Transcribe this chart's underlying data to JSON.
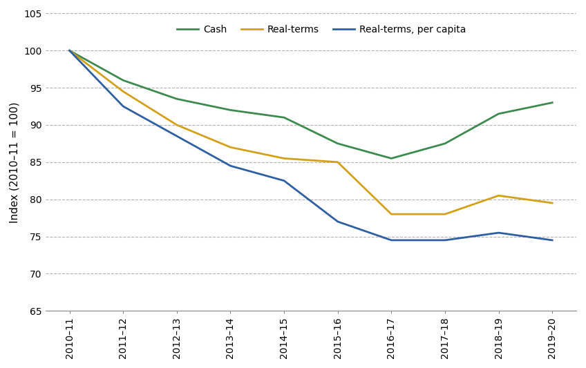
{
  "x_labels": [
    "2010–11",
    "2011–12",
    "2012–13",
    "2013–14",
    "2014–15",
    "2015–16",
    "2016–17",
    "2017–18",
    "2018–19",
    "2019–20"
  ],
  "cash": [
    100,
    96.0,
    93.5,
    92.0,
    91.0,
    87.5,
    85.5,
    87.5,
    91.5,
    93.0
  ],
  "real_terms": [
    100,
    94.5,
    90.0,
    87.0,
    85.5,
    85.0,
    78.0,
    78.0,
    80.5,
    79.5
  ],
  "real_terms_per_capita": [
    100,
    92.5,
    88.5,
    84.5,
    82.5,
    77.0,
    74.5,
    74.5,
    75.5,
    74.5
  ],
  "cash_color": "#3d8a4e",
  "real_terms_color": "#d4a017",
  "per_capita_color": "#2e5fa3",
  "ylim": [
    65,
    105
  ],
  "yticks": [
    65,
    70,
    75,
    80,
    85,
    90,
    95,
    100,
    105
  ],
  "ylabel": "Index (2010–11 = 100)",
  "legend_labels": [
    "Cash",
    "Real-terms",
    "Real-terms, per capita"
  ],
  "grid_color": "#b0b0b0",
  "linewidth": 2.0
}
